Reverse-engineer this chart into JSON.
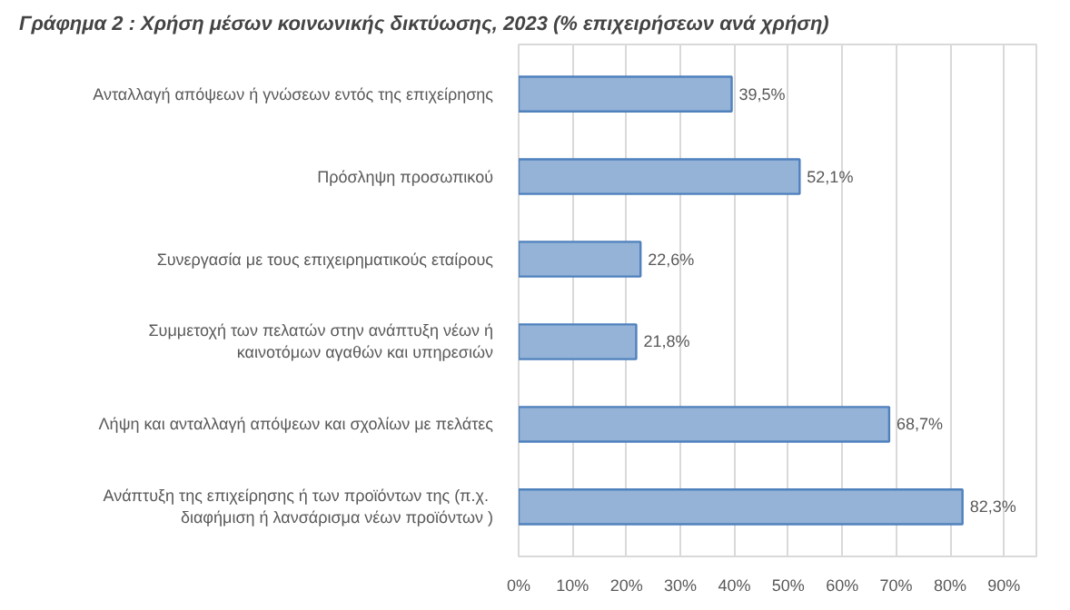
{
  "chart_data": {
    "type": "bar",
    "orientation": "horizontal",
    "title": "Γράφημα 2 : Χρήση μέσων κοινωνικής δικτύωσης, 2023 (% επιχειρήσεων ανά χρήση)",
    "categories": [
      "Ανταλλαγή απόψεων ή γνώσεων εντός της επιχείρησης",
      "Πρόσληψη προσωπικού",
      "Συνεργασία με τους επιχειρηματικούς εταίρους",
      "Συμμετοχή των πελατών στην ανάπτυξη νέων ή\nκαινοτόμων αγαθών και υπηρεσιών",
      "Λήψη και ανταλλαγή απόψεων και σχολίων με πελάτες",
      "Ανάπτυξη  της επιχείρησης ή των προϊόντων της (π.χ.\nδιαφήμιση ή λανσάρισμα νέων προϊόντων )"
    ],
    "values": [
      39.5,
      52.1,
      22.6,
      21.8,
      68.7,
      82.3
    ],
    "value_labels": [
      "39,5%",
      "52,1%",
      "22,6%",
      "21,8%",
      "68,7%",
      "82,3%"
    ],
    "color": "#95b3d7",
    "xlim": [
      0,
      96
    ],
    "xticks": [
      {
        "value": 0,
        "label": "0%"
      },
      {
        "value": 10,
        "label": "10%"
      },
      {
        "value": 20,
        "label": "20%"
      },
      {
        "value": 30,
        "label": "30%"
      },
      {
        "value": 40,
        "label": "40%"
      },
      {
        "value": 50,
        "label": "50%"
      },
      {
        "value": 60,
        "label": "60%"
      },
      {
        "value": 70,
        "label": "70%"
      },
      {
        "value": 80,
        "label": "80%"
      },
      {
        "value": 90,
        "label": "90%"
      }
    ],
    "grid": "x"
  }
}
